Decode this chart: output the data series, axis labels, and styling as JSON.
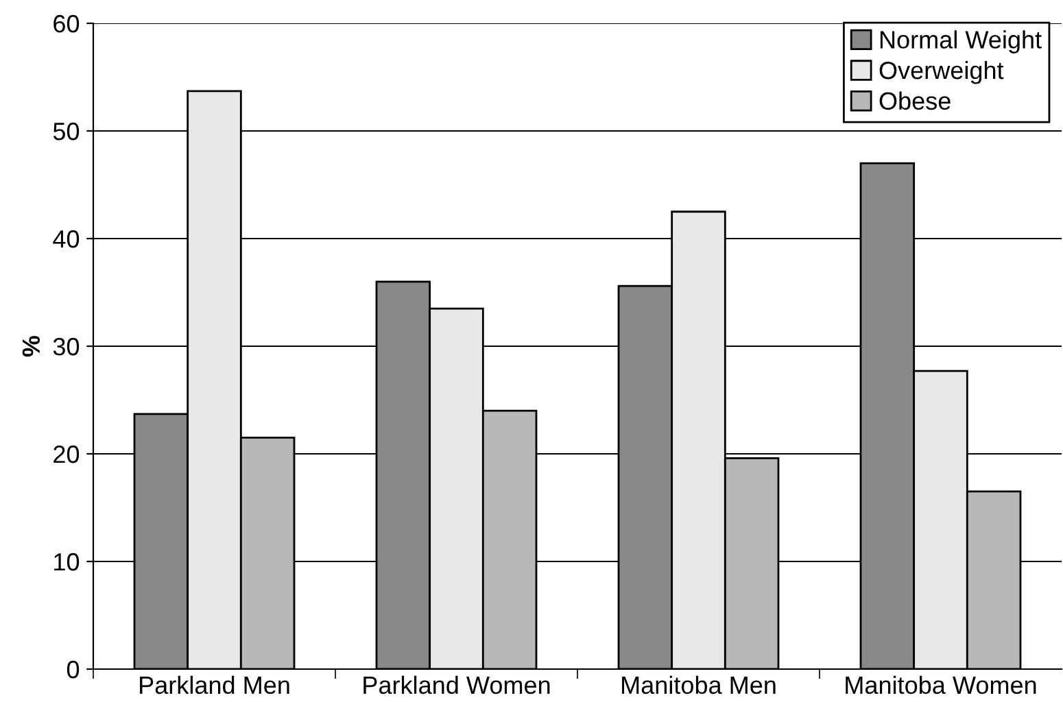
{
  "chart_data": {
    "type": "bar",
    "ylabel": "%",
    "categories": [
      "Parkland Men",
      "Parkland Women",
      "Manitoba Men",
      "Manitoba Women"
    ],
    "series": [
      {
        "name": "Normal Weight",
        "color": "#888888",
        "values": [
          23.7,
          36.0,
          35.6,
          47.0
        ]
      },
      {
        "name": "Overweight",
        "color": "#e8e8e8",
        "values": [
          53.7,
          33.5,
          42.5,
          27.7
        ]
      },
      {
        "name": "Obese",
        "color": "#b8b8b8",
        "values": [
          21.5,
          24.0,
          19.6,
          16.5
        ]
      }
    ],
    "ylim": [
      0,
      60
    ],
    "yticks": [
      0,
      10,
      20,
      30,
      40,
      50,
      60
    ],
    "grid": "y",
    "legend": "top right"
  }
}
